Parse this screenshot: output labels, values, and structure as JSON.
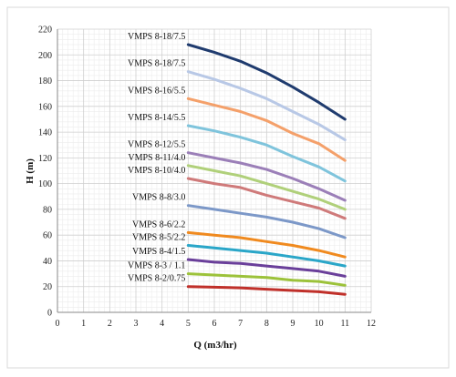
{
  "chart_data": {
    "type": "line",
    "xlabel": "Q (m3/hr)",
    "ylabel": "H (m)",
    "xlim": [
      0,
      12
    ],
    "ylim": [
      0,
      220
    ],
    "xticks": [
      0,
      1,
      2,
      3,
      4,
      5,
      6,
      7,
      8,
      9,
      10,
      11,
      12
    ],
    "yticks": [
      0,
      20,
      40,
      60,
      80,
      100,
      120,
      140,
      160,
      180,
      200,
      220
    ],
    "grid": true,
    "legend": "none",
    "series": [
      {
        "name": "VMPS 8-18/7.5",
        "color": "#1f3b6e",
        "x": [
          5,
          6,
          7,
          8,
          9,
          10,
          11
        ],
        "y": [
          208,
          202,
          195,
          186,
          175,
          163,
          150
        ]
      },
      {
        "name": "VMPS 8-18/7.5",
        "color": "#b8c8e6",
        "x": [
          5,
          6,
          7,
          8,
          9,
          10,
          11
        ],
        "y": [
          187,
          181,
          174,
          166,
          156,
          146,
          134
        ]
      },
      {
        "name": "VMPS 8-16/5.5",
        "color": "#f4a06a",
        "x": [
          5,
          6,
          7,
          8,
          9,
          10,
          11
        ],
        "y": [
          166,
          161,
          156,
          149,
          139,
          131,
          118
        ]
      },
      {
        "name": "VMPS 8-14/5.5",
        "color": "#7fc4dc",
        "x": [
          5,
          6,
          7,
          8,
          9,
          10,
          11
        ],
        "y": [
          145,
          141,
          136,
          130,
          121,
          113,
          102
        ]
      },
      {
        "name": "VMPS 8-12/5.5",
        "color": "#9b7fb8",
        "x": [
          5,
          6,
          7,
          8,
          9,
          10,
          11
        ],
        "y": [
          124,
          120,
          116,
          111,
          104,
          96,
          87
        ]
      },
      {
        "name": "VMPS 8-11/4.0",
        "color": "#b0d07a",
        "x": [
          5,
          6,
          7,
          8,
          9,
          10,
          11
        ],
        "y": [
          114,
          110,
          106,
          100,
          94,
          88,
          80
        ]
      },
      {
        "name": "VMPS 8-10/4.0",
        "color": "#cf7a7a",
        "x": [
          5,
          6,
          7,
          8,
          9,
          10,
          11
        ],
        "y": [
          104,
          100,
          97,
          91,
          86,
          81,
          73
        ]
      },
      {
        "name": "VMPS 8-8/3.0",
        "color": "#7c98c8",
        "x": [
          5,
          6,
          7,
          8,
          9,
          10,
          11
        ],
        "y": [
          83,
          80,
          77,
          74,
          70,
          65,
          58
        ]
      },
      {
        "name": "VMPS 8-6/2.2",
        "color": "#f08a1f",
        "x": [
          5,
          6,
          7,
          8,
          9,
          10,
          11
        ],
        "y": [
          62,
          60,
          58,
          55,
          52,
          48,
          43
        ]
      },
      {
        "name": "VMPS 8-5/2.2",
        "color": "#2aa6c8",
        "x": [
          5,
          6,
          7,
          8,
          9,
          10,
          11
        ],
        "y": [
          52,
          50,
          48,
          46,
          43,
          40,
          36
        ]
      },
      {
        "name": "VMPS 8-4/1.5",
        "color": "#6a3f9a",
        "x": [
          5,
          6,
          7,
          8,
          9,
          10,
          11
        ],
        "y": [
          41,
          39,
          38,
          36,
          34,
          32,
          28
        ]
      },
      {
        "name": "VMPS 8-3 / 1.1",
        "color": "#9cc23a",
        "x": [
          5,
          6,
          7,
          8,
          9,
          10,
          11
        ],
        "y": [
          30,
          29,
          28,
          27,
          25,
          24,
          21
        ]
      },
      {
        "name": "VMPS 8-2/0.75",
        "color": "#c0302a",
        "x": [
          5,
          6,
          7,
          8,
          9,
          10,
          11
        ],
        "y": [
          20,
          19.5,
          19,
          18,
          17,
          16,
          14
        ]
      }
    ]
  }
}
